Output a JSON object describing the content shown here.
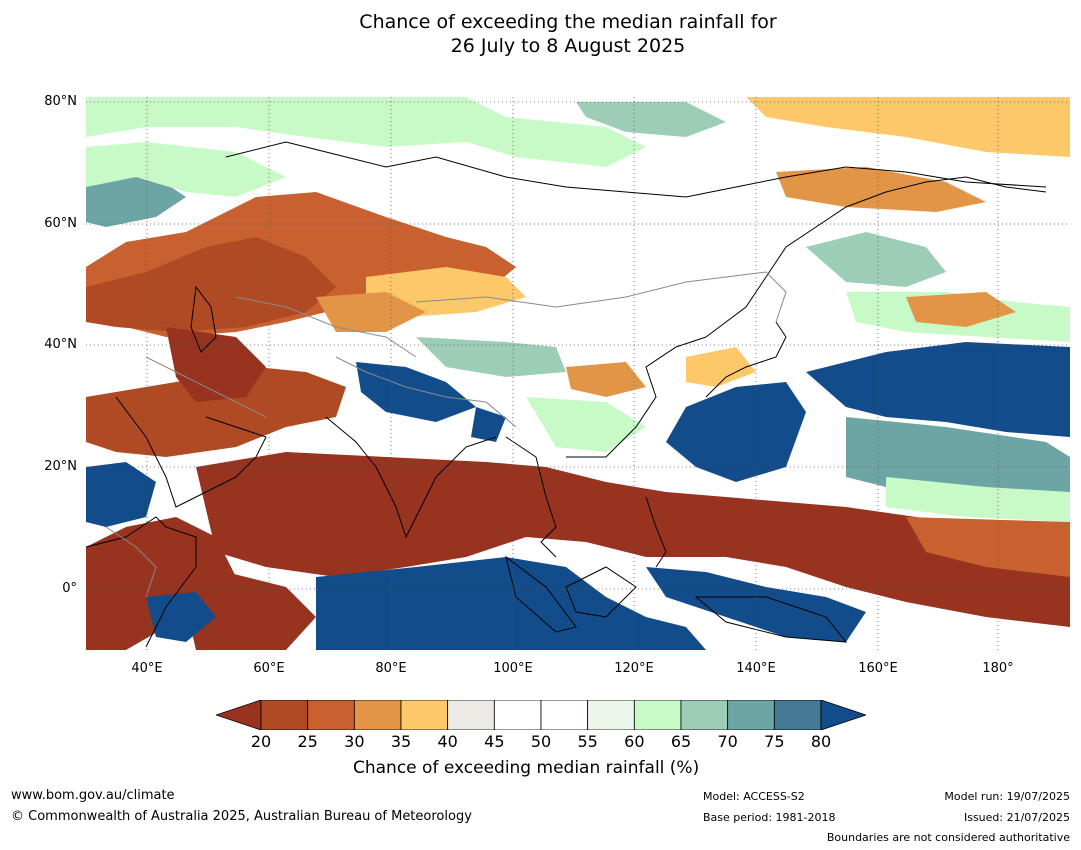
{
  "title": {
    "line1": "Chance of exceeding the median rainfall for",
    "line2": "26 July to 8 August 2025"
  },
  "map": {
    "lat_labels": [
      "80°N",
      "60°N",
      "40°N",
      "20°N",
      "0°"
    ],
    "lon_labels": [
      "40°E",
      "60°E",
      "80°E",
      "100°E",
      "120°E",
      "140°E",
      "160°E",
      "180°"
    ],
    "lat_range": [
      -10,
      80
    ],
    "lon_range": [
      30,
      191
    ],
    "colors": {
      "dry_deep": "#97331f",
      "wet_deep": "#124c8a",
      "coast": "#000000",
      "borders": "#8a8a8a"
    }
  },
  "colorbar": {
    "ticks": [
      "20",
      "25",
      "30",
      "35",
      "40",
      "45",
      "50",
      "55",
      "60",
      "65",
      "70",
      "75",
      "80"
    ],
    "colors": [
      "#97331f",
      "#b04a24",
      "#c8612f",
      "#e29447",
      "#fdc86a",
      "#eceae4",
      "#ffffff",
      "#ffffff",
      "#eaf6ea",
      "#c8fac8",
      "#9ccdb6",
      "#6ca5a4",
      "#447993",
      "#124c8a"
    ],
    "label": "Chance of exceeding median rainfall (%)"
  },
  "footer": {
    "url": "www.bom.gov.au/climate",
    "copyright": "© Commonwealth of Australia 2025, Australian Bureau of Meteorology",
    "model": "Model: ACCESS-S2",
    "base_period": "Base period: 1981-2018",
    "model_run": "Model run: 19/07/2025",
    "issued": "Issued: 21/07/2025",
    "disclaimer": "Boundaries are not considered authoritative"
  }
}
